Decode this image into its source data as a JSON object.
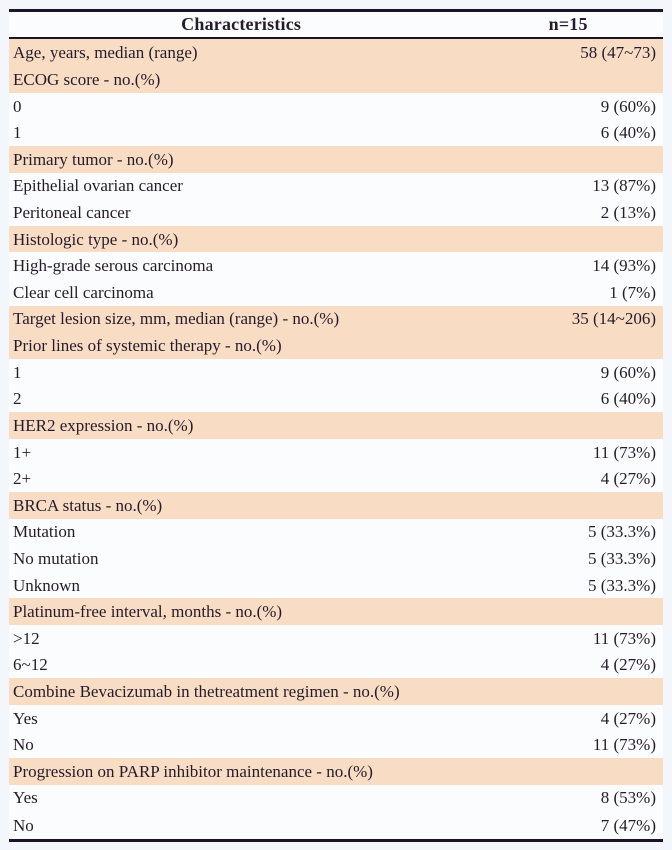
{
  "table": {
    "header": {
      "characteristics": "Characteristics",
      "n": "n=15"
    },
    "rows": [
      {
        "label": "Age, years, median (range)",
        "value": "58 (47~73)",
        "shaded": true
      },
      {
        "label": "ECOG score - no.(%)",
        "value": "",
        "shaded": true
      },
      {
        "label": "0",
        "value": "9 (60%)",
        "shaded": false
      },
      {
        "label": "1",
        "value": "6 (40%)",
        "shaded": false
      },
      {
        "label": "Primary tumor - no.(%)",
        "value": "",
        "shaded": true
      },
      {
        "label": "Epithelial ovarian cancer",
        "value": "13 (87%)",
        "shaded": false
      },
      {
        "label": "Peritoneal cancer",
        "value": "2 (13%)",
        "shaded": false
      },
      {
        "label": "Histologic type - no.(%)",
        "value": "",
        "shaded": true
      },
      {
        "label": "High-grade serous carcinoma",
        "value": "14 (93%)",
        "shaded": false
      },
      {
        "label": "Clear cell carcinoma",
        "value": "1 (7%)",
        "shaded": false
      },
      {
        "label": "Target lesion size, mm, median (range) - no.(%)",
        "value": "35 (14~206)",
        "shaded": true
      },
      {
        "label": "Prior lines of systemic therapy - no.(%)",
        "value": "",
        "shaded": true
      },
      {
        "label": "1",
        "value": "9 (60%)",
        "shaded": false
      },
      {
        "label": "2",
        "value": "6 (40%)",
        "shaded": false
      },
      {
        "label": "HER2 expression - no.(%)",
        "value": "",
        "shaded": true
      },
      {
        "label": "1+",
        "value": "11 (73%)",
        "shaded": false
      },
      {
        "label": "2+",
        "value": "4 (27%)",
        "shaded": false
      },
      {
        "label": "BRCA status - no.(%)",
        "value": "",
        "shaded": true
      },
      {
        "label": "Mutation",
        "value": "5 (33.3%)",
        "shaded": false
      },
      {
        "label": "No mutation",
        "value": "5 (33.3%)",
        "shaded": false
      },
      {
        "label": "Unknown",
        "value": "5 (33.3%)",
        "shaded": false
      },
      {
        "label": "Platinum-free interval, months - no.(%)",
        "value": "",
        "shaded": true
      },
      {
        "label": ">12",
        "value": "11 (73%)",
        "shaded": false
      },
      {
        "label": "6~12",
        "value": "4 (27%)",
        "shaded": false
      },
      {
        "label": "Combine Bevacizumab in thetreatment regimen - no.(%)",
        "value": "",
        "shaded": true
      },
      {
        "label": "Yes",
        "value": "4 (27%)",
        "shaded": false
      },
      {
        "label": "No",
        "value": "11 (73%)",
        "shaded": false
      },
      {
        "label": "Progression on PARP inhibitor maintenance - no.(%)",
        "value": "",
        "shaded": true
      },
      {
        "label": "Yes",
        "value": "8 (53%)",
        "shaded": false
      },
      {
        "label": "No",
        "value": "7 (47%)",
        "shaded": false
      }
    ]
  },
  "colors": {
    "page_background": "#f3f6fb",
    "row_shaded": "#f8dcc4",
    "row_plain": "#fbfcfe",
    "border": "#1c1424",
    "text": "#241b2b"
  }
}
